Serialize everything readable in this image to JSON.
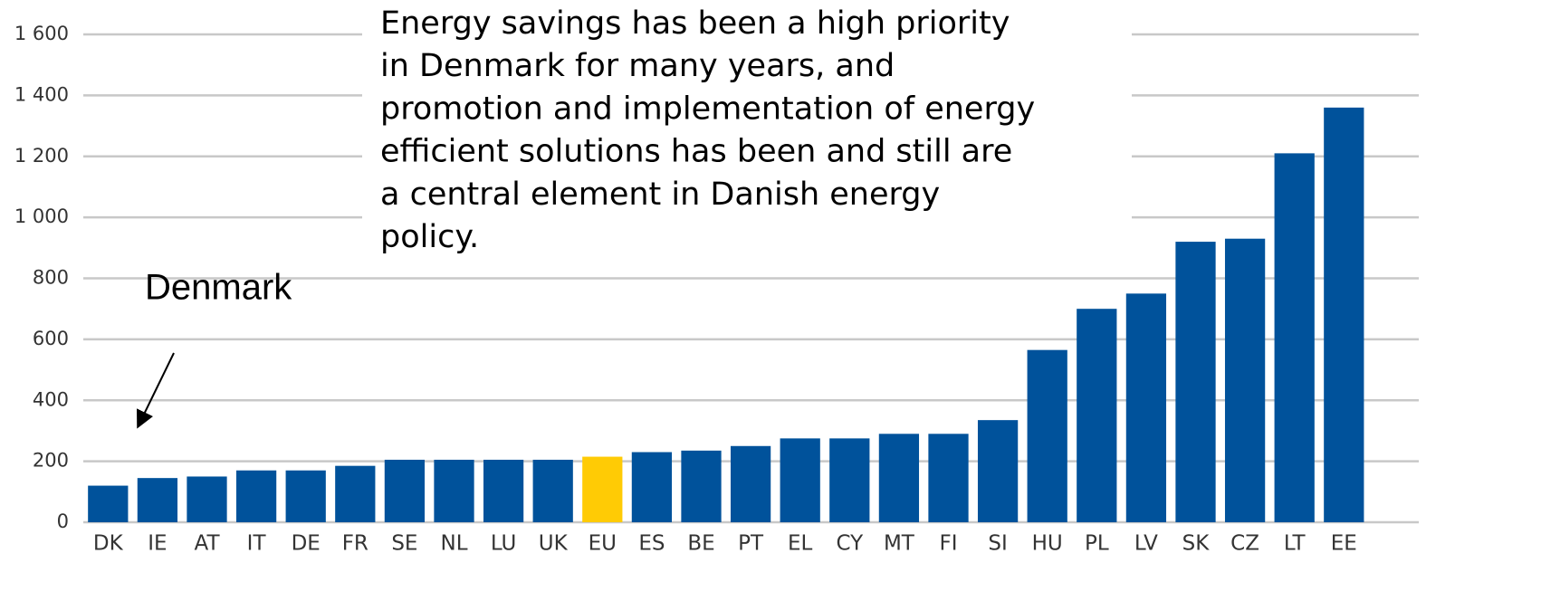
{
  "chart_data": {
    "type": "bar",
    "annotations": [
      "Energy savings has been a high priority",
      "in Denmark for many years, and",
      "promotion and implementation of energy",
      "efficient solutions has been and still are",
      "a central element in Danish energy",
      "policy."
    ],
    "callout": "Denmark",
    "categories": [
      "DK",
      "IE",
      "AT",
      "IT",
      "DE",
      "FR",
      "SE",
      "NL",
      "LU",
      "UK",
      "EU",
      "ES",
      "BE",
      "PT",
      "EL",
      "CY",
      "MT",
      "FI",
      "SI",
      "HU",
      "PL",
      "LV",
      "SK",
      "CZ",
      "LT",
      "EE"
    ],
    "values": [
      120,
      145,
      150,
      170,
      170,
      185,
      205,
      205,
      205,
      205,
      215,
      230,
      235,
      250,
      275,
      275,
      290,
      290,
      335,
      565,
      700,
      750,
      920,
      930,
      1210,
      1360
    ],
    "colors": [
      "#00529b",
      "#00529b",
      "#00529b",
      "#00529b",
      "#00529b",
      "#00529b",
      "#00529b",
      "#00529b",
      "#00529b",
      "#00529b",
      "#ffcb05",
      "#00529b",
      "#00529b",
      "#00529b",
      "#00529b",
      "#00529b",
      "#00529b",
      "#00529b",
      "#00529b",
      "#00529b",
      "#00529b",
      "#00529b",
      "#00529b",
      "#00529b",
      "#00529b",
      "#00529b"
    ],
    "ylim": [
      0,
      1600
    ],
    "yticks": [
      0,
      200,
      400,
      600,
      800,
      {
        "value": 1000,
        "label": "1 000"
      },
      {
        "value": 1200,
        "label": "1 200"
      },
      {
        "value": 1400,
        "label": "1 400"
      },
      {
        "value": 1600,
        "label": "1 600"
      }
    ],
    "grid": true
  }
}
